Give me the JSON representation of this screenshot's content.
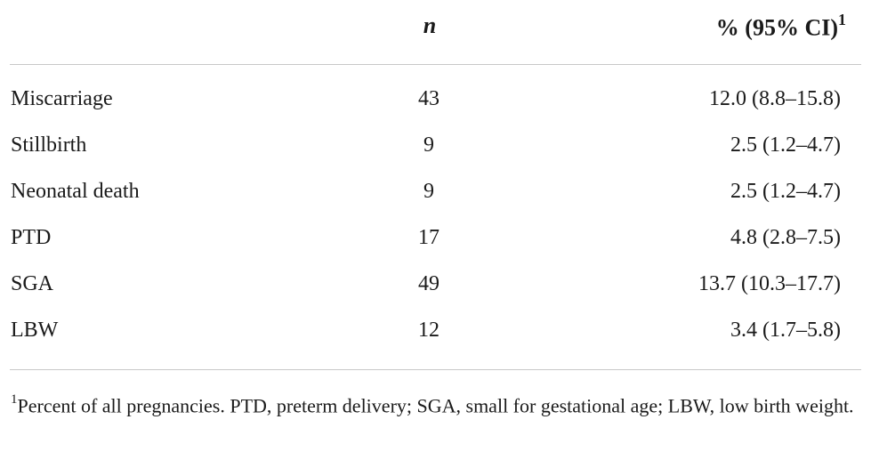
{
  "table": {
    "header": {
      "col_label": "",
      "col_n": "n",
      "col_pct": "% (95% CI)",
      "col_pct_footnote_mark": "1"
    },
    "rows": [
      {
        "label": "Miscarriage",
        "n": "43",
        "pct": "12.0 (8.8–15.8)"
      },
      {
        "label": "Stillbirth",
        "n": "9",
        "pct": "2.5 (1.2–4.7)"
      },
      {
        "label": "Neonatal death",
        "n": "9",
        "pct": "2.5 (1.2–4.7)"
      },
      {
        "label": "PTD",
        "n": "17",
        "pct": "4.8 (2.8–7.5)"
      },
      {
        "label": "SGA",
        "n": "49",
        "pct": "13.7 (10.3–17.7)"
      },
      {
        "label": "LBW",
        "n": "12",
        "pct": "3.4 (1.7–5.8)"
      }
    ]
  },
  "footnote": {
    "mark": "1",
    "text": "Percent of all pregnancies. PTD, preterm delivery; SGA, small for gestational age; LBW, low birth weight."
  }
}
